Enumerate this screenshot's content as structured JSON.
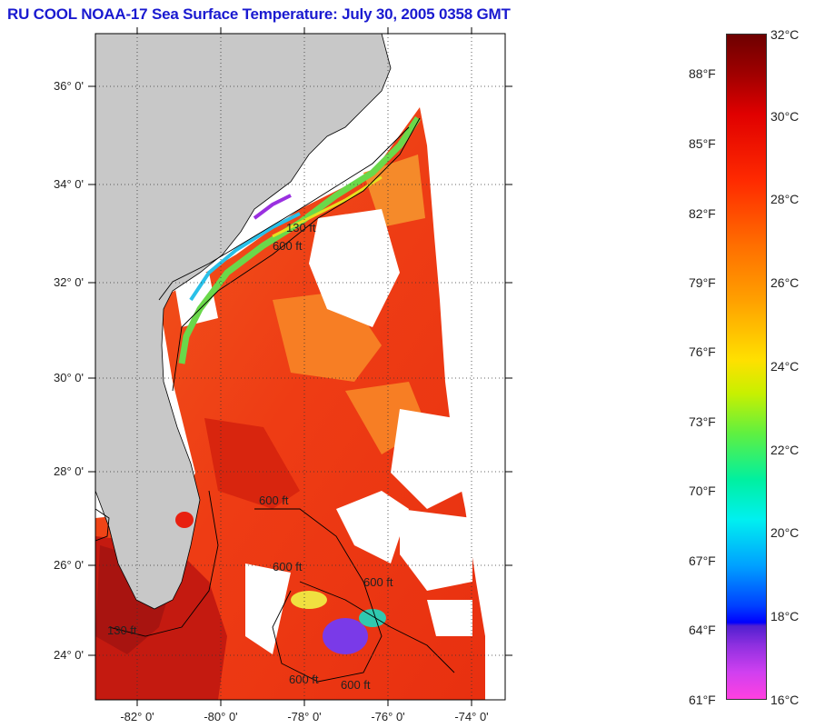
{
  "title": "RU COOL  NOAA-17  Sea Surface Temperature:  July 30, 2005 0358 GMT",
  "map": {
    "lon_ticks": [
      "-82° 0'",
      "-80° 0'",
      "-78° 0'",
      "-76° 0'",
      "-74° 0'"
    ],
    "lat_ticks": [
      "36° 0'",
      "34° 0'",
      "32° 0'",
      "30° 0'",
      "28° 0'",
      "26° 0'",
      "24° 0'"
    ],
    "contour_labels": [
      "130 ft",
      "600 ft",
      "600 ft",
      "600 ft",
      "600 ft",
      "600 ft",
      "130 ft",
      "600 ft"
    ],
    "colors": {
      "land": "#c8c8c8",
      "cloud": "#ffffff",
      "ocean_warm": "#f04a18"
    }
  },
  "colorbar": {
    "fahrenheit": [
      "88°F",
      "85°F",
      "82°F",
      "79°F",
      "76°F",
      "73°F",
      "70°F",
      "67°F",
      "64°F",
      "61°F"
    ],
    "celsius": [
      "32°C",
      "30°C",
      "28°C",
      "26°C",
      "24°C",
      "22°C",
      "20°C",
      "18°C",
      "16°C"
    ]
  }
}
